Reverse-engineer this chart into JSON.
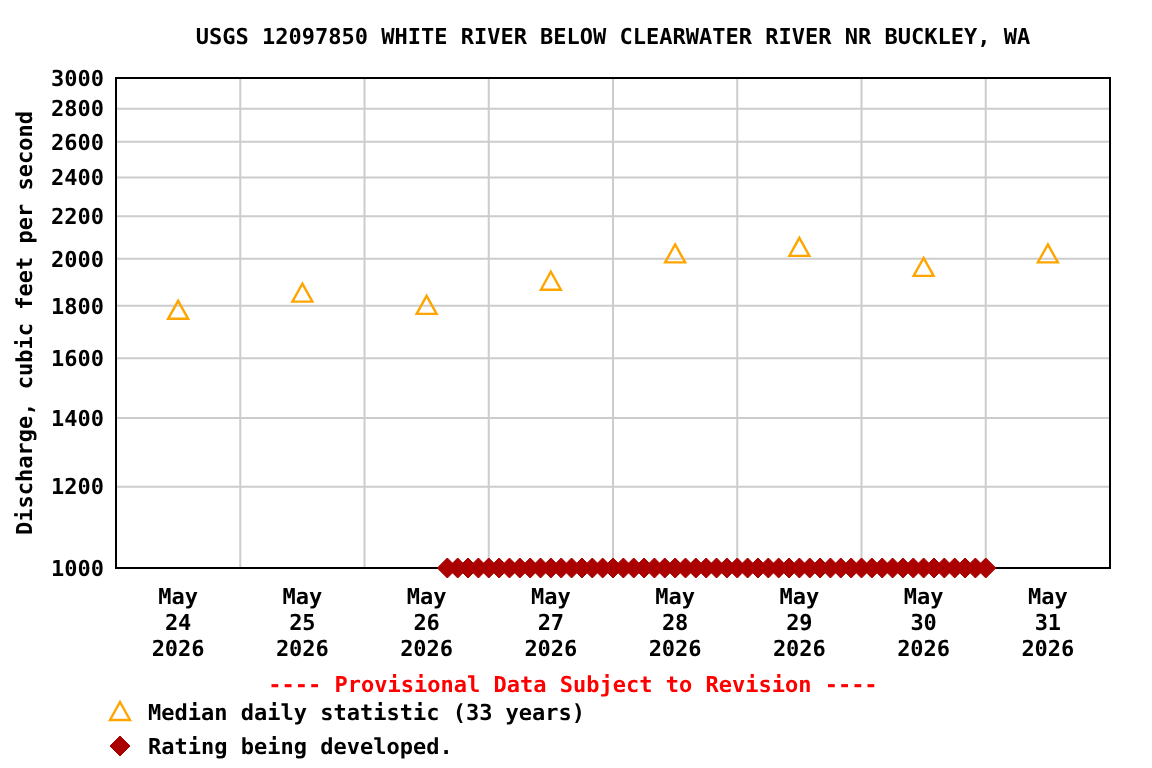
{
  "chart_data": {
    "type": "scatter",
    "title": "USGS 12097850 WHITE RIVER BELOW CLEARWATER RIVER NR BUCKLEY, WA",
    "ylabel": "Discharge, cubic feet per second",
    "log": "y",
    "grid": true,
    "legend": "bottom",
    "annotations": [
      "---- Provisional Data Subject to Revision ----"
    ],
    "xlim": [
      "2026-05-24",
      "2026-06-01"
    ],
    "xticks": [
      {
        "value": "2026-05-24",
        "label": null
      },
      {
        "value": "2026-05-24T12:00",
        "label": "May\n24\n2026"
      },
      {
        "value": "2026-05-25",
        "label": null
      },
      {
        "value": "2026-05-25T12:00",
        "label": "May\n25\n2026"
      },
      {
        "value": "2026-05-26",
        "label": null
      },
      {
        "value": "2026-05-26T12:00",
        "label": "May\n26\n2026"
      },
      {
        "value": "2026-05-27",
        "label": null
      },
      {
        "value": "2026-05-27T12:00",
        "label": "May\n27\n2026"
      },
      {
        "value": "2026-05-28",
        "label": null
      },
      {
        "value": "2026-05-28T12:00",
        "label": "May\n28\n2026"
      },
      {
        "value": "2026-05-29",
        "label": null
      },
      {
        "value": "2026-05-29T12:00",
        "label": "May\n29\n2026"
      },
      {
        "value": "2026-05-30",
        "label": null
      },
      {
        "value": "2026-05-30T12:00",
        "label": "May\n30\n2026"
      },
      {
        "value": "2026-05-31",
        "label": null
      },
      {
        "value": "2026-05-31T12:00",
        "label": "May\n31\n2026"
      }
    ],
    "ylim": [
      1000,
      3000
    ],
    "yticks": [
      1000,
      1200,
      1400,
      1600,
      1800,
      2000,
      2200,
      2400,
      2600,
      2800,
      3000
    ],
    "series": [
      {
        "name": "Median daily statistic (33 years)",
        "marker": "triangle",
        "color": "#ffa500",
        "x": [
          "2026-05-24T12:00",
          "2026-05-25T12:00",
          "2026-05-26T12:00",
          "2026-05-27T12:00",
          "2026-05-28T12:00",
          "2026-05-29T12:00",
          "2026-05-30T12:00",
          "2026-05-31T12:00"
        ],
        "values": [
          1780,
          1850,
          1800,
          1900,
          2020,
          2050,
          1960,
          2020
        ]
      },
      {
        "name": "Rating being developed.",
        "marker": "diamond",
        "color": "#aa0000",
        "x": [
          "2026-05-26T16:00",
          "2026-05-26T18:00",
          "2026-05-26T20:00",
          "2026-05-26T22:00",
          "2026-05-27T00:00",
          "2026-05-27T02:00",
          "2026-05-27T04:00",
          "2026-05-27T06:00",
          "2026-05-27T08:00",
          "2026-05-27T10:00",
          "2026-05-27T12:00",
          "2026-05-27T14:00",
          "2026-05-27T16:00",
          "2026-05-27T18:00",
          "2026-05-27T20:00",
          "2026-05-27T22:00",
          "2026-05-28T00:00",
          "2026-05-28T02:00",
          "2026-05-28T04:00",
          "2026-05-28T06:00",
          "2026-05-28T08:00",
          "2026-05-28T10:00",
          "2026-05-28T12:00",
          "2026-05-28T14:00",
          "2026-05-28T16:00",
          "2026-05-28T18:00",
          "2026-05-28T20:00",
          "2026-05-28T22:00",
          "2026-05-29T00:00",
          "2026-05-29T02:00",
          "2026-05-29T04:00",
          "2026-05-29T06:00",
          "2026-05-29T08:00",
          "2026-05-29T10:00",
          "2026-05-29T12:00",
          "2026-05-29T14:00",
          "2026-05-29T16:00",
          "2026-05-29T18:00",
          "2026-05-29T20:00",
          "2026-05-29T22:00",
          "2026-05-30T00:00",
          "2026-05-30T02:00",
          "2026-05-30T04:00",
          "2026-05-30T06:00",
          "2026-05-30T08:00",
          "2026-05-30T10:00",
          "2026-05-30T12:00",
          "2026-05-30T14:00",
          "2026-05-30T16:00",
          "2026-05-30T18:00",
          "2026-05-30T20:00",
          "2026-05-30T22:00",
          "2026-05-31T00:00"
        ],
        "values": [
          1000,
          1000,
          1000,
          1000,
          1000,
          1000,
          1000,
          1000,
          1000,
          1000,
          1000,
          1000,
          1000,
          1000,
          1000,
          1000,
          1000,
          1000,
          1000,
          1000,
          1000,
          1000,
          1000,
          1000,
          1000,
          1000,
          1000,
          1000,
          1000,
          1000,
          1000,
          1000,
          1000,
          1000,
          1000,
          1000,
          1000,
          1000,
          1000,
          1000,
          1000,
          1000,
          1000,
          1000,
          1000,
          1000,
          1000,
          1000,
          1000,
          1000,
          1000,
          1000,
          1000
        ]
      }
    ]
  }
}
